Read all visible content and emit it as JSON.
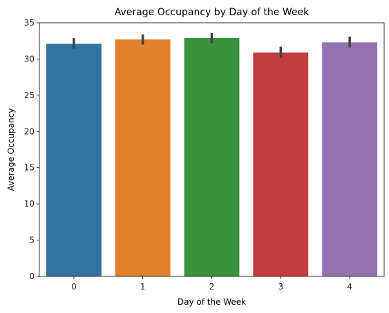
{
  "chart_data": {
    "type": "bar",
    "title": "Average Occupancy by Day of the Week",
    "xlabel": "Day of the Week",
    "ylabel": "Average Occupancy",
    "categories": [
      "0",
      "1",
      "2",
      "3",
      "4"
    ],
    "values": [
      32.1,
      32.7,
      32.9,
      30.9,
      32.3
    ],
    "error_low": [
      31.4,
      32.0,
      32.2,
      30.2,
      31.6
    ],
    "error_high": [
      32.9,
      33.4,
      33.6,
      31.7,
      33.1
    ],
    "colors": [
      "#3274a1",
      "#e1812c",
      "#3a923a",
      "#c03d3e",
      "#9372b2"
    ],
    "error_color": "#424242",
    "ylim": [
      0,
      35
    ],
    "yticks": [
      0,
      5,
      10,
      15,
      20,
      25,
      30,
      35
    ],
    "grid": false,
    "legend": "none"
  }
}
